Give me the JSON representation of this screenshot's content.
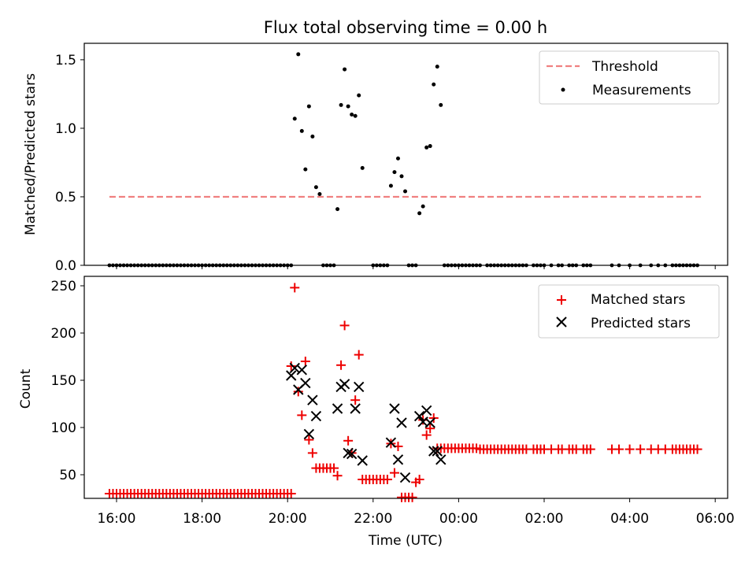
{
  "figure": {
    "title": "Flux total observing time = 0.00 h",
    "xlabel": "Time (UTC)"
  },
  "chart_data": [
    {
      "type": "scatter",
      "ylabel": "Matched/Predicted stars",
      "ylim": [
        0,
        1.62
      ],
      "yticks": [
        "0.0",
        "0.5",
        "1.0",
        "1.5"
      ],
      "ytick_values": [
        0,
        0.5,
        1.0,
        1.5
      ],
      "legend": {
        "placement": "top-right",
        "entries": [
          "Threshold",
          "Measurements"
        ]
      },
      "threshold": {
        "name": "Threshold",
        "y": 0.5,
        "x_start": "15:50",
        "x_end": "05:40",
        "color": "#f08080"
      },
      "series": [
        {
          "name": "Measurements",
          "color": "#000000",
          "points": [
            [
              "20:10",
              1.07
            ],
            [
              "20:15",
              1.54
            ],
            [
              "20:20",
              0.98
            ],
            [
              "20:25",
              0.7
            ],
            [
              "20:30",
              1.16
            ],
            [
              "20:35",
              0.94
            ],
            [
              "20:40",
              0.57
            ],
            [
              "20:45",
              0.52
            ],
            [
              "21:10",
              0.41
            ],
            [
              "21:15",
              1.17
            ],
            [
              "21:20",
              1.43
            ],
            [
              "21:25",
              1.16
            ],
            [
              "21:30",
              1.1
            ],
            [
              "21:35",
              1.09
            ],
            [
              "21:40",
              1.24
            ],
            [
              "21:45",
              0.71
            ],
            [
              "22:25",
              0.58
            ],
            [
              "22:30",
              0.68
            ],
            [
              "22:35",
              0.78
            ],
            [
              "22:40",
              0.65
            ],
            [
              "22:45",
              0.54
            ],
            [
              "23:05",
              0.38
            ],
            [
              "23:10",
              0.43
            ],
            [
              "23:15",
              0.86
            ],
            [
              "23:20",
              0.87
            ],
            [
              "23:25",
              1.32
            ],
            [
              "23:30",
              1.45
            ],
            [
              "23:35",
              1.17
            ]
          ],
          "zero_ranges": [
            [
              "15:50",
              "20:05"
            ],
            [
              "20:50",
              "21:05"
            ],
            [
              "22:00",
              "22:20"
            ],
            [
              "22:50",
              "23:00"
            ],
            [
              "23:40",
              "00:30"
            ],
            [
              "00:40",
              "01:35"
            ]
          ],
          "zero_points": [
            "01:45",
            "01:50",
            "01:55",
            "02:00",
            "02:10",
            "02:20",
            "02:25",
            "02:35",
            "02:40",
            "02:45",
            "02:55",
            "03:00",
            "03:05",
            "03:35",
            "03:45",
            "04:00",
            "04:15",
            "04:30",
            "04:40",
            "04:50",
            "05:00",
            "05:05",
            "05:10",
            "05:15",
            "05:20",
            "05:25",
            "05:30",
            "05:35"
          ]
        }
      ]
    },
    {
      "type": "scatter",
      "ylabel": "Count",
      "ylim": [
        25,
        260
      ],
      "yticks": [
        "50",
        "100",
        "150",
        "200",
        "250"
      ],
      "ytick_values": [
        50,
        100,
        150,
        200,
        250
      ],
      "legend": {
        "placement": "top-right",
        "entries": [
          "Matched stars",
          "Predicted stars"
        ]
      },
      "series": [
        {
          "name": "Matched stars",
          "marker": "+",
          "color": "#ee0000",
          "constant_runs": [
            {
              "from": "15:50",
              "to": "20:05",
              "step": 5,
              "y": 30
            },
            {
              "from": "00:30",
              "to": "01:35",
              "step": 5,
              "y": 77
            }
          ],
          "points": [
            [
              "20:05",
              165
            ],
            [
              "20:10",
              248
            ],
            [
              "20:15",
              138
            ],
            [
              "20:20",
              113
            ],
            [
              "20:25",
              170
            ],
            [
              "20:30",
              87
            ],
            [
              "20:35",
              73
            ],
            [
              "20:40",
              57
            ],
            [
              "20:45",
              57
            ],
            [
              "20:50",
              57
            ],
            [
              "20:55",
              57
            ],
            [
              "21:00",
              57
            ],
            [
              "21:05",
              57
            ],
            [
              "21:10",
              49
            ],
            [
              "21:15",
              166
            ],
            [
              "21:20",
              208
            ],
            [
              "21:25",
              86
            ],
            [
              "21:30",
              73
            ],
            [
              "21:35",
              129
            ],
            [
              "21:40",
              177
            ],
            [
              "21:45",
              45
            ],
            [
              "21:50",
              45
            ],
            [
              "21:55",
              45
            ],
            [
              "22:00",
              45
            ],
            [
              "22:05",
              45
            ],
            [
              "22:10",
              45
            ],
            [
              "22:15",
              45
            ],
            [
              "22:20",
              45
            ],
            [
              "22:25",
              83
            ],
            [
              "22:30",
              52
            ],
            [
              "22:35",
              80
            ],
            [
              "22:40",
              26
            ],
            [
              "22:45",
              26
            ],
            [
              "22:50",
              26
            ],
            [
              "22:55",
              26
            ],
            [
              "23:00",
              42
            ],
            [
              "23:05",
              45
            ],
            [
              "23:10",
              108
            ],
            [
              "23:15",
              92
            ],
            [
              "23:20",
              99
            ],
            [
              "23:25",
              110
            ],
            [
              "23:30",
              78
            ],
            [
              "23:35",
              78
            ],
            [
              "23:40",
              78
            ],
            [
              "23:45",
              78
            ],
            [
              "23:50",
              78
            ],
            [
              "23:55",
              78
            ],
            [
              "00:00",
              78
            ],
            [
              "00:05",
              78
            ],
            [
              "00:10",
              78
            ],
            [
              "00:15",
              78
            ],
            [
              "00:20",
              78
            ],
            [
              "00:25",
              78
            ],
            [
              "01:45",
              77
            ],
            [
              "01:50",
              77
            ],
            [
              "01:55",
              77
            ],
            [
              "02:00",
              77
            ],
            [
              "02:10",
              77
            ],
            [
              "02:20",
              77
            ],
            [
              "02:25",
              77
            ],
            [
              "02:35",
              77
            ],
            [
              "02:40",
              77
            ],
            [
              "02:45",
              77
            ],
            [
              "02:55",
              77
            ],
            [
              "03:00",
              77
            ],
            [
              "03:05",
              77
            ],
            [
              "03:35",
              77
            ],
            [
              "03:45",
              77
            ],
            [
              "04:00",
              77
            ],
            [
              "04:15",
              77
            ],
            [
              "04:30",
              77
            ],
            [
              "04:40",
              77
            ],
            [
              "04:50",
              77
            ],
            [
              "05:00",
              77
            ],
            [
              "05:05",
              77
            ],
            [
              "05:10",
              77
            ],
            [
              "05:15",
              77
            ],
            [
              "05:20",
              77
            ],
            [
              "05:25",
              77
            ],
            [
              "05:30",
              77
            ],
            [
              "05:35",
              77
            ]
          ]
        },
        {
          "name": "Predicted stars",
          "marker": "x",
          "color": "#000000",
          "points": [
            [
              "20:05",
              155
            ],
            [
              "20:10",
              163
            ],
            [
              "20:15",
              140
            ],
            [
              "20:20",
              161
            ],
            [
              "20:25",
              147
            ],
            [
              "20:30",
              93
            ],
            [
              "20:35",
              129
            ],
            [
              "20:40",
              112
            ],
            [
              "21:10",
              120
            ],
            [
              "21:15",
              143
            ],
            [
              "21:20",
              146
            ],
            [
              "21:25",
              73
            ],
            [
              "21:30",
              72
            ],
            [
              "21:35",
              120
            ],
            [
              "21:40",
              143
            ],
            [
              "21:45",
              65
            ],
            [
              "22:25",
              84
            ],
            [
              "22:30",
              120
            ],
            [
              "22:35",
              66
            ],
            [
              "22:40",
              105
            ],
            [
              "22:45",
              47
            ],
            [
              "23:05",
              112
            ],
            [
              "23:10",
              106
            ],
            [
              "23:15",
              118
            ],
            [
              "23:20",
              105
            ],
            [
              "23:25",
              75
            ],
            [
              "23:30",
              75
            ],
            [
              "23:35",
              66
            ]
          ]
        }
      ]
    }
  ],
  "xticks": [
    "16:00",
    "18:00",
    "20:00",
    "22:00",
    "00:00",
    "02:00",
    "04:00",
    "06:00"
  ]
}
